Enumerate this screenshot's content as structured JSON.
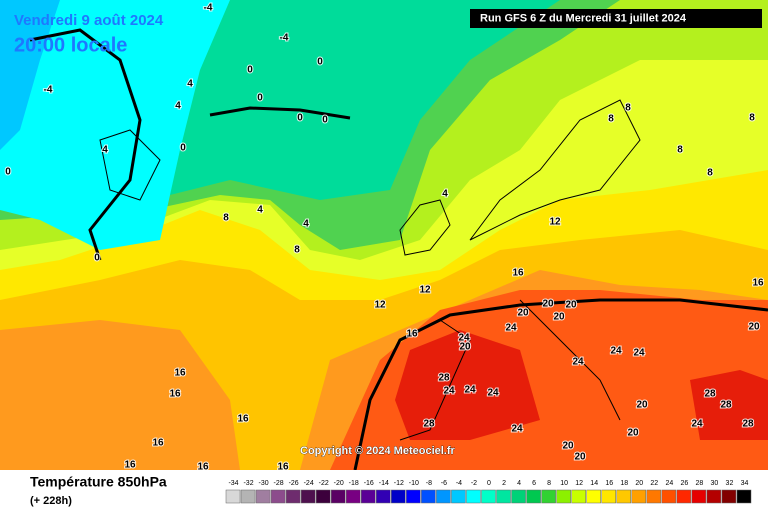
{
  "header": {
    "date": "Vendredi 9 août 2024",
    "time": "20:00 locale",
    "run": "Run GFS 6 Z du Mercredi 31 juillet 2024"
  },
  "map": {
    "copyright": "Copyright © 2024 Meteociel.fr",
    "contour_labels": [
      -4,
      -4,
      -4,
      0,
      0,
      0,
      0,
      0,
      0,
      0,
      0,
      4,
      4,
      4,
      4,
      4,
      4,
      8,
      8,
      8,
      8,
      8,
      8,
      8,
      12,
      12,
      12,
      16,
      16,
      16,
      16,
      16,
      16,
      16,
      16,
      16,
      16,
      20,
      20,
      20,
      20,
      20,
      20,
      20,
      20,
      20,
      20,
      24,
      24,
      24,
      24,
      24,
      24,
      24,
      24,
      24,
      24,
      28,
      28,
      28,
      28,
      28
    ]
  },
  "legend": {
    "title": "Température 850hPa",
    "lead": "(+ 228h)",
    "scale": [
      -34,
      -32,
      -30,
      -28,
      -26,
      -24,
      -22,
      -20,
      -18,
      -16,
      -14,
      -12,
      -10,
      -8,
      -6,
      -4,
      -2,
      0,
      2,
      4,
      6,
      8,
      10,
      12,
      14,
      16,
      18,
      20,
      22,
      24,
      26,
      28,
      30,
      32,
      34
    ],
    "colors": [
      "#d8d8d8",
      "#b4b4b4",
      "#a07ea0",
      "#8c4c8c",
      "#6e2c6e",
      "#4e104e",
      "#3c003c",
      "#5a0064",
      "#780082",
      "#5a0096",
      "#3200b4",
      "#0000c8",
      "#0000ff",
      "#0050ff",
      "#0096ff",
      "#00c8ff",
      "#00ffff",
      "#00ffc8",
      "#00e6a0",
      "#00d278",
      "#00c850",
      "#32d232",
      "#8cf000",
      "#c8ff00",
      "#ffff00",
      "#ffe600",
      "#ffc800",
      "#ffa000",
      "#ff7800",
      "#ff5000",
      "#ff2800",
      "#e60000",
      "#b40000",
      "#820000",
      "#000000"
    ]
  }
}
